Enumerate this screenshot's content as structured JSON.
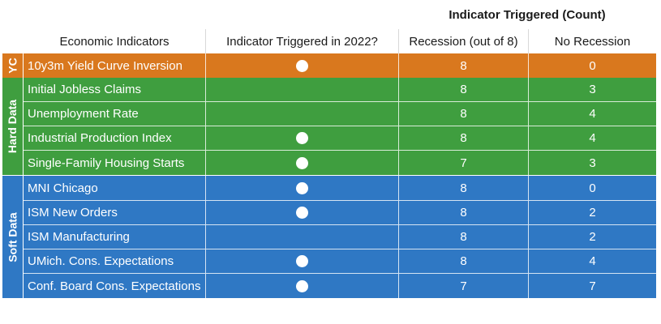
{
  "header": {
    "group_title": "Indicator Triggered (Count)",
    "columns": [
      "Economic Indicators",
      "Indicator Triggered in 2022?",
      "Recession (out of 8)",
      "No Recession"
    ]
  },
  "groups": {
    "yc": "YC",
    "hard": "Hard Data",
    "soft": "Soft Data"
  },
  "colors": {
    "yc": "#d9781e",
    "hard": "#3f9e3f",
    "soft": "#2f78c4"
  },
  "rows": [
    {
      "name": "10y3m Yield Curve Inversion",
      "triggered": true,
      "recession": "8",
      "no_recession": "0"
    },
    {
      "name": "Initial Jobless Claims",
      "triggered": false,
      "recession": "8",
      "no_recession": "3"
    },
    {
      "name": "Unemployment Rate",
      "triggered": false,
      "recession": "8",
      "no_recession": "4"
    },
    {
      "name": "Industrial Production Index",
      "triggered": true,
      "recession": "8",
      "no_recession": "4"
    },
    {
      "name": "Single-Family Housing Starts",
      "triggered": true,
      "recession": "7",
      "no_recession": "3"
    },
    {
      "name": "MNI Chicago",
      "triggered": true,
      "recession": "8",
      "no_recession": "0"
    },
    {
      "name": "ISM New Orders",
      "triggered": true,
      "recession": "8",
      "no_recession": "2"
    },
    {
      "name": "ISM Manufacturing",
      "triggered": false,
      "recession": "8",
      "no_recession": "2"
    },
    {
      "name": "UMich. Cons. Expectations",
      "triggered": true,
      "recession": "8",
      "no_recession": "4"
    },
    {
      "name": "Conf. Board Cons. Expectations",
      "triggered": true,
      "recession": "7",
      "no_recession": "7"
    }
  ]
}
